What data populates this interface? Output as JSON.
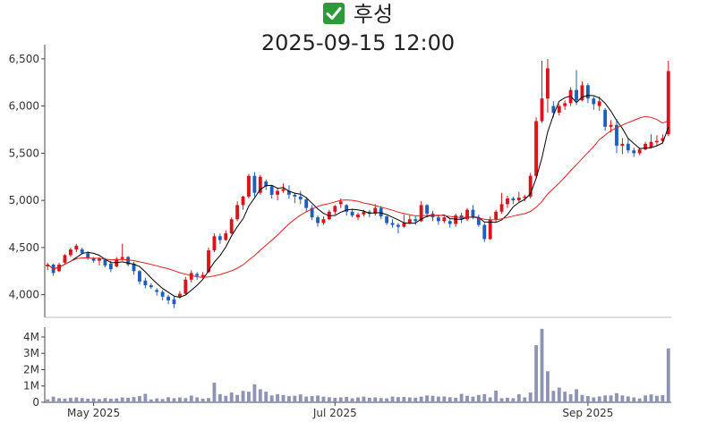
{
  "header": {
    "check_icon": "check-mark-icon",
    "check_color": "#2e9a3a",
    "stock_name": "후성",
    "timestamp": "2025-09-15 12:00"
  },
  "colors": {
    "up": "#d9141b",
    "down": "#1f5fb8",
    "ma_short": "#000000",
    "ma_long": "#e02020",
    "volume": "#8e95b4"
  },
  "chart_data": {
    "type": "candlestick",
    "price_axis": {
      "ylim": [
        3760,
        6650
      ],
      "ticks": [
        4000,
        4500,
        5000,
        5500,
        6000,
        6500
      ],
      "tick_labels": [
        "4,000",
        "4,500",
        "5,000",
        "5,500",
        "6,000",
        "6,500"
      ]
    },
    "volume_axis": {
      "ylim": [
        0,
        4600000
      ],
      "ticks": [
        0,
        1000000,
        2000000,
        3000000,
        4000000
      ],
      "tick_labels": [
        "0",
        "1M",
        "2M",
        "3M",
        "4M"
      ]
    },
    "x_tick_labels": [
      {
        "index": 8,
        "label": "May 2025"
      },
      {
        "index": 50,
        "label": "Jul 2025"
      },
      {
        "index": 94,
        "label": "Sep 2025"
      }
    ],
    "moving_averages": [
      {
        "key": "ma_short",
        "period": 5
      },
      {
        "key": "ma_long",
        "period": 20
      }
    ],
    "ohlcv": [
      [
        4300,
        4340,
        4260,
        4320,
        180000
      ],
      [
        4320,
        4330,
        4200,
        4230,
        350000
      ],
      [
        4250,
        4340,
        4240,
        4320,
        250000
      ],
      [
        4340,
        4430,
        4330,
        4420,
        230000
      ],
      [
        4420,
        4500,
        4400,
        4480,
        280000
      ],
      [
        4480,
        4540,
        4450,
        4520,
        300000
      ],
      [
        4480,
        4500,
        4430,
        4440,
        260000
      ],
      [
        4440,
        4460,
        4370,
        4390,
        220000
      ],
      [
        4390,
        4400,
        4340,
        4360,
        240000
      ],
      [
        4360,
        4400,
        4310,
        4380,
        200000
      ],
      [
        4380,
        4390,
        4290,
        4310,
        260000
      ],
      [
        4330,
        4360,
        4240,
        4270,
        220000
      ],
      [
        4300,
        4400,
        4290,
        4380,
        240000
      ],
      [
        4380,
        4540,
        4360,
        4400,
        300000
      ],
      [
        4400,
        4410,
        4300,
        4320,
        280000
      ],
      [
        4330,
        4350,
        4210,
        4250,
        320000
      ],
      [
        4250,
        4260,
        4110,
        4140,
        380000
      ],
      [
        4150,
        4180,
        4070,
        4100,
        520000
      ],
      [
        4100,
        4120,
        4060,
        4080,
        180000
      ],
      [
        4050,
        4070,
        3990,
        4030,
        240000
      ],
      [
        4030,
        4050,
        3940,
        3980,
        200000
      ],
      [
        3980,
        4000,
        3900,
        3940,
        310000
      ],
      [
        3950,
        3980,
        3860,
        3900,
        250000
      ],
      [
        3980,
        4040,
        3960,
        4010,
        300000
      ],
      [
        4010,
        4190,
        4000,
        4160,
        260000
      ],
      [
        4160,
        4260,
        4130,
        4230,
        410000
      ],
      [
        4220,
        4240,
        4160,
        4200,
        300000
      ],
      [
        4190,
        4240,
        4170,
        4210,
        220000
      ],
      [
        4240,
        4500,
        4230,
        4470,
        260000
      ],
      [
        4470,
        4650,
        4450,
        4620,
        1200000
      ],
      [
        4620,
        4650,
        4540,
        4580,
        500000
      ],
      [
        4580,
        4680,
        4570,
        4650,
        400000
      ],
      [
        4650,
        4820,
        4640,
        4800,
        600000
      ],
      [
        4800,
        4990,
        4780,
        4950,
        450000
      ],
      [
        4950,
        5050,
        4900,
        5040,
        700000
      ],
      [
        5040,
        5280,
        5020,
        5260,
        650000
      ],
      [
        5260,
        5300,
        5040,
        5080,
        1100000
      ],
      [
        5080,
        5270,
        5060,
        5250,
        800000
      ],
      [
        5200,
        5220,
        5110,
        5150,
        650000
      ],
      [
        5150,
        5160,
        5020,
        5060,
        420000
      ],
      [
        5060,
        5130,
        5000,
        5100,
        500000
      ],
      [
        5100,
        5180,
        5080,
        5120,
        450000
      ],
      [
        5100,
        5160,
        5020,
        5060,
        380000
      ],
      [
        5060,
        5080,
        4970,
        5040,
        400000
      ],
      [
        5040,
        5100,
        4960,
        5010,
        480000
      ],
      [
        5010,
        5030,
        4880,
        4920,
        350000
      ],
      [
        4920,
        4950,
        4790,
        4820,
        380000
      ],
      [
        4820,
        4840,
        4720,
        4760,
        420000
      ],
      [
        4760,
        4830,
        4740,
        4800,
        350000
      ],
      [
        4800,
        4900,
        4790,
        4880,
        310000
      ],
      [
        4880,
        4950,
        4850,
        4940,
        280000
      ],
      [
        4960,
        5020,
        4920,
        4990,
        300000
      ],
      [
        4950,
        4960,
        4840,
        4880,
        330000
      ],
      [
        4880,
        4910,
        4820,
        4840,
        250000
      ],
      [
        4820,
        4870,
        4790,
        4850,
        300000
      ],
      [
        4850,
        4900,
        4830,
        4880,
        350000
      ],
      [
        4880,
        4900,
        4820,
        4860,
        280000
      ],
      [
        4860,
        4960,
        4840,
        4920,
        300000
      ],
      [
        4920,
        4940,
        4800,
        4830,
        260000
      ],
      [
        4830,
        4840,
        4740,
        4760,
        240000
      ],
      [
        4760,
        4800,
        4710,
        4740,
        350000
      ],
      [
        4740,
        4760,
        4650,
        4720,
        320000
      ],
      [
        4720,
        4850,
        4710,
        4760,
        330000
      ],
      [
        4760,
        4840,
        4750,
        4800,
        300000
      ],
      [
        4800,
        4830,
        4740,
        4780,
        280000
      ],
      [
        4780,
        4990,
        4770,
        4950,
        350000
      ],
      [
        4950,
        4960,
        4820,
        4860,
        420000
      ],
      [
        4860,
        4890,
        4780,
        4820,
        400000
      ],
      [
        4820,
        4840,
        4740,
        4780,
        350000
      ],
      [
        4780,
        4830,
        4760,
        4820,
        360000
      ],
      [
        4780,
        4800,
        4710,
        4750,
        310000
      ],
      [
        4750,
        4860,
        4720,
        4840,
        280000
      ],
      [
        4840,
        4870,
        4760,
        4800,
        520000
      ],
      [
        4800,
        4920,
        4780,
        4900,
        400000
      ],
      [
        4900,
        4950,
        4800,
        4820,
        350000
      ],
      [
        4820,
        4850,
        4720,
        4740,
        450000
      ],
      [
        4740,
        4760,
        4560,
        4590,
        500000
      ],
      [
        4590,
        4830,
        4580,
        4800,
        300000
      ],
      [
        4800,
        4900,
        4770,
        4880,
        720000
      ],
      [
        4880,
        5080,
        4860,
        4960,
        250000
      ],
      [
        4960,
        5050,
        4920,
        5020,
        280000
      ],
      [
        5020,
        5040,
        4960,
        5000,
        250000
      ],
      [
        5000,
        5090,
        4980,
        5030,
        500000
      ],
      [
        5030,
        5060,
        4990,
        5040,
        300000
      ],
      [
        5040,
        5290,
        5020,
        5260,
        600000
      ],
      [
        5260,
        5880,
        5230,
        5840,
        3500000
      ],
      [
        5840,
        6480,
        5820,
        6080,
        4500000
      ],
      [
        6080,
        6500,
        5930,
        6400,
        1900000
      ],
      [
        6000,
        6050,
        5880,
        5930,
        700000
      ],
      [
        5930,
        6020,
        5900,
        6000,
        900000
      ],
      [
        6000,
        6060,
        5960,
        6030,
        650000
      ],
      [
        6030,
        6200,
        6000,
        6170,
        500000
      ],
      [
        6170,
        6380,
        6010,
        6060,
        800000
      ],
      [
        6060,
        6260,
        6050,
        6220,
        450000
      ],
      [
        6220,
        6240,
        6030,
        6080,
        380000
      ],
      [
        6080,
        6100,
        5960,
        6020,
        300000
      ],
      [
        6000,
        6100,
        5950,
        6050,
        360000
      ],
      [
        5960,
        5980,
        5740,
        5780,
        420000
      ],
      [
        5780,
        5850,
        5720,
        5800,
        420000
      ],
      [
        5800,
        5860,
        5500,
        5580,
        560000
      ],
      [
        5580,
        5660,
        5490,
        5600,
        420000
      ],
      [
        5600,
        5660,
        5500,
        5530,
        360000
      ],
      [
        5530,
        5560,
        5460,
        5500,
        300000
      ],
      [
        5500,
        5560,
        5480,
        5540,
        240000
      ],
      [
        5540,
        5620,
        5530,
        5600,
        420000
      ],
      [
        5560,
        5700,
        5550,
        5620,
        480000
      ],
      [
        5620,
        5690,
        5580,
        5630,
        400000
      ],
      [
        5630,
        5700,
        5600,
        5660,
        440000
      ],
      [
        5700,
        6480,
        5680,
        6370,
        3300000
      ]
    ]
  }
}
